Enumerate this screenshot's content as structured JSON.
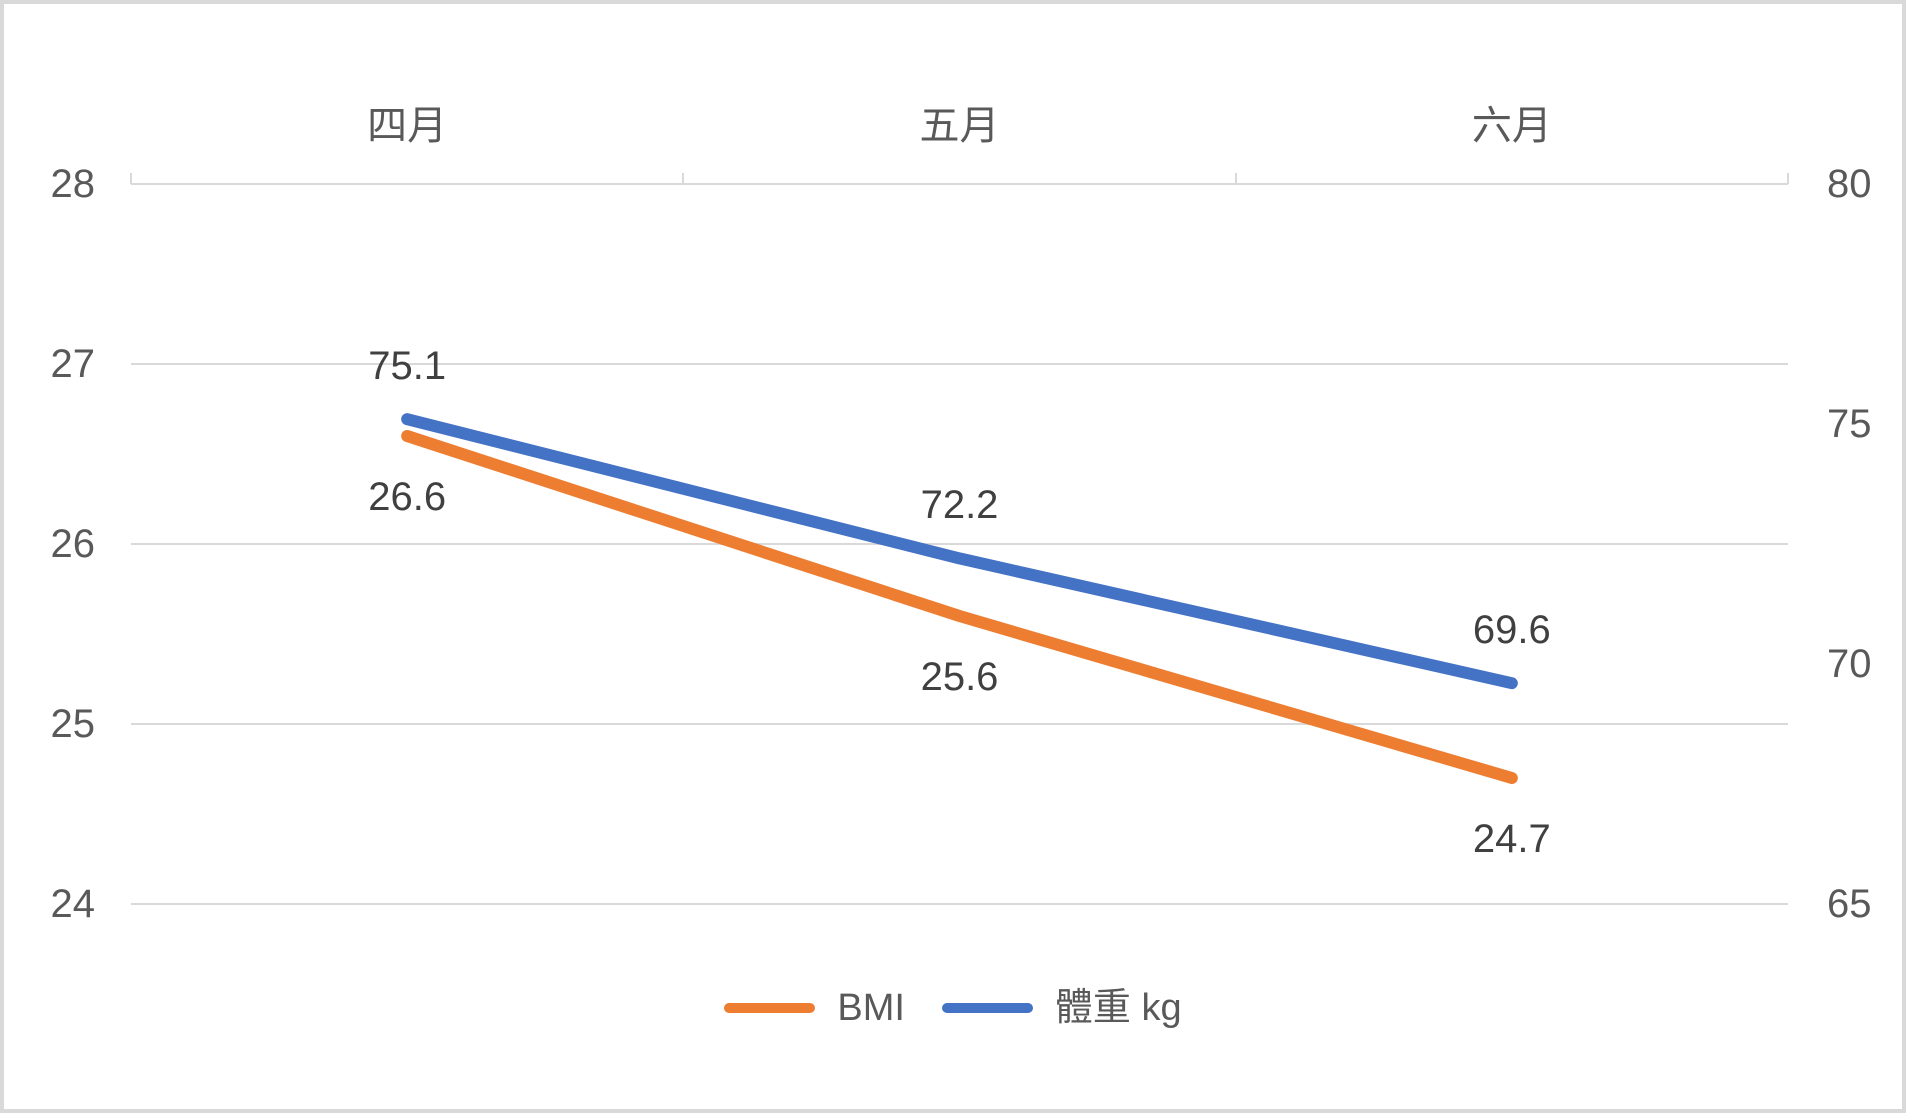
{
  "chart_data": {
    "type": "line",
    "categories": [
      "四月",
      "五月",
      "六月"
    ],
    "series": [
      {
        "id": "bmi",
        "name": "BMI",
        "yaxis": "left",
        "color": "#ED7D31",
        "values": [
          26.6,
          25.6,
          24.7
        ],
        "data_labels": [
          "26.6",
          "25.6",
          "24.7"
        ],
        "data_label_position": "below"
      },
      {
        "id": "weight-kg",
        "name": "體重 kg",
        "yaxis": "right",
        "color": "#4472C4",
        "values": [
          75.1,
          72.2,
          69.6
        ],
        "data_labels": [
          "75.1",
          "72.2",
          "69.6"
        ],
        "data_label_position": "above"
      }
    ],
    "left_axis": {
      "min": 24,
      "max": 28,
      "ticks": [
        "28",
        "27",
        "26",
        "25",
        "24"
      ]
    },
    "right_axis": {
      "min": 65,
      "max": 80,
      "ticks": [
        "80",
        "75",
        "70",
        "65"
      ]
    },
    "grid": true,
    "category_axis_position": "top",
    "legend_position": "bottom-center",
    "title": ""
  },
  "legend": {
    "items": [
      {
        "label": "BMI"
      },
      {
        "label": "體重 kg"
      }
    ]
  },
  "colors": {
    "grid": "#D9D9D9",
    "frame_border": "#D9D9D9",
    "axis_text": "#595959",
    "data_label_text": "#404040",
    "background": "#FFFFFF",
    "series_bmi": "#ED7D31",
    "series_weight": "#4472C4"
  }
}
